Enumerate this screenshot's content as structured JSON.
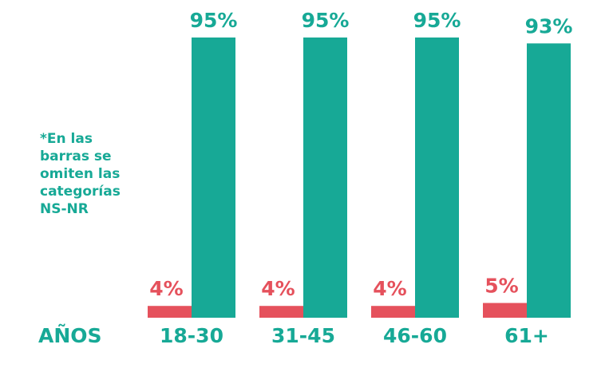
{
  "chart_data": {
    "type": "bar",
    "x_label": "AÑOS",
    "annotation": [
      "*En las",
      "barras se",
      "omiten las",
      "categorías",
      "NS-NR"
    ],
    "categories": [
      "18-30",
      "31-45",
      "46-60",
      "61+"
    ],
    "series": [
      {
        "color": "#e5515c",
        "values": [
          4,
          4,
          4,
          5
        ],
        "value_labels": [
          "4%",
          "4%",
          "4%",
          "5%"
        ]
      },
      {
        "color": "#17a996",
        "values": [
          95,
          95,
          95,
          93
        ],
        "value_labels": [
          "95%",
          "95%",
          "95%",
          "93%"
        ]
      }
    ],
    "ylim": [
      0,
      100
    ]
  }
}
